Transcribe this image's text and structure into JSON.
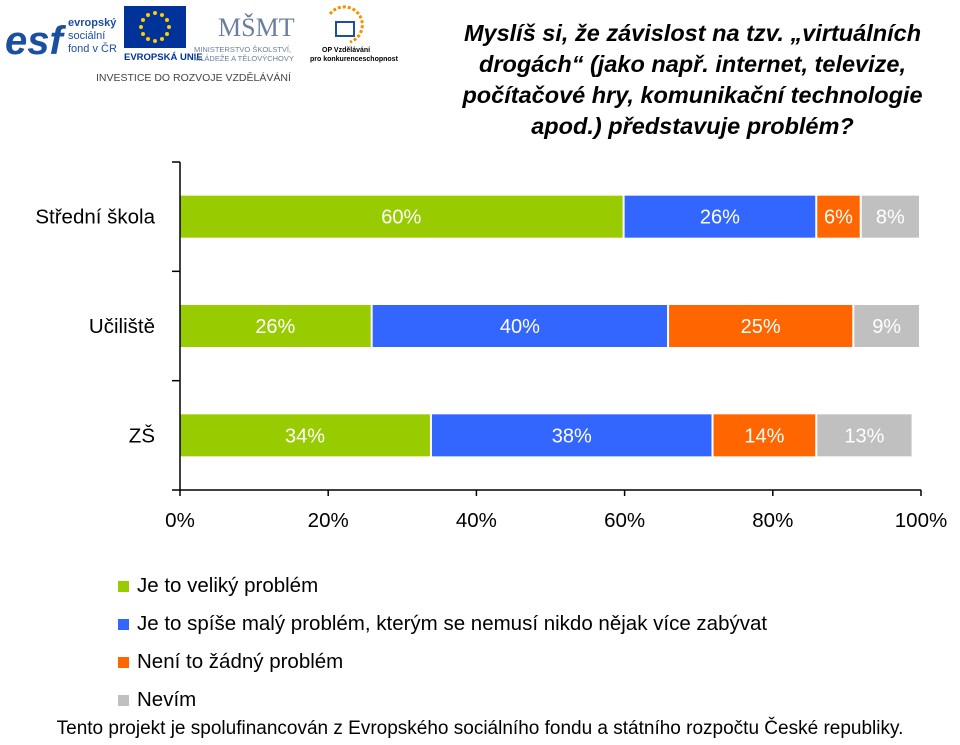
{
  "header": {
    "logo_esf": {
      "lines": [
        "evropský",
        "sociální",
        "fond v ČR"
      ],
      "wordmark": "esf",
      "eu_label": "EVROPSKÁ UNIE",
      "tagline": "INVESTICE DO ROZVOJE VZDĚLÁVÁNÍ"
    },
    "logo_msmt": {
      "wordmark": "MŠMT",
      "lines": [
        "MINISTERSTVO ŠKOLSTVÍ,",
        "MLÁDEŽE A TĚLOVÝCHOVY"
      ]
    },
    "logo_op": {
      "lines": [
        "OP Vzdělávání",
        "pro konkurenceschopnost"
      ]
    },
    "colors": {
      "esf_blue": "#1b4fa0",
      "eu_blue": "#003399",
      "eu_star": "#ffcc00",
      "msmt": "#6a7f9c",
      "op_orange": "#f39200"
    }
  },
  "title": "Myslíš si, že závislost na tzv. „virtuálních drogách“ (jako např. internet, televize, počítačové hry, komunikační technologie apod.) představuje problém?",
  "chart_data": {
    "type": "bar",
    "orientation": "horizontal",
    "stacked": "percent",
    "categories": [
      "Střední škola",
      "Učiliště",
      "ZŠ"
    ],
    "series": [
      {
        "name": "Je to veliký problém",
        "values": [
          60,
          26,
          34
        ],
        "labels": [
          "60%",
          "26%",
          "34%"
        ],
        "color": "#99cc00"
      },
      {
        "name": "Je to spíše malý problém, kterým se nemusí nikdo nějak více zabývat",
        "values": [
          26,
          40,
          38
        ],
        "labels": [
          "26%",
          "40%",
          "38%"
        ],
        "color": "#3366ff"
      },
      {
        "name": "Není to žádný problém",
        "values": [
          6,
          25,
          14
        ],
        "labels": [
          "6%",
          "25%",
          "14%"
        ],
        "color": "#ff6600"
      },
      {
        "name": "Nevím",
        "values": [
          8,
          9,
          13
        ],
        "labels": [
          "8%",
          "9%",
          "13%"
        ],
        "color": "#c0c0c0"
      }
    ],
    "xlim": [
      0,
      100
    ],
    "xticks": [
      "0%",
      "20%",
      "40%",
      "60%",
      "80%",
      "100%"
    ],
    "grid": false,
    "legend_position": "bottom-left"
  },
  "footer": "Tento projekt je spolufinancován z Evropského sociálního fondu a státního rozpočtu České republiky."
}
